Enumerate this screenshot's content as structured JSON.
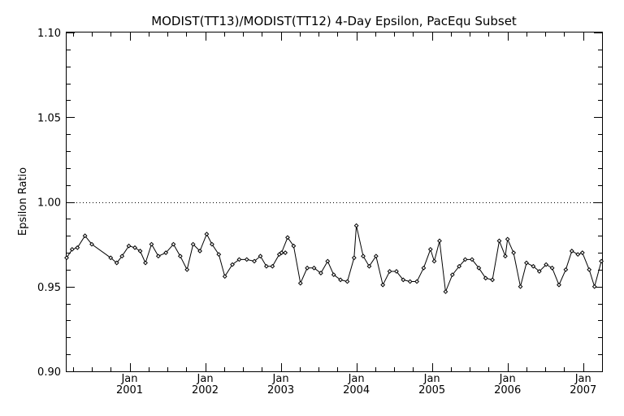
{
  "chart_data": {
    "type": "line",
    "title": "MODIST(TT13)/MODIST(TT12) 4-Day Epsilon, PacEqu Subset",
    "xlabel": "",
    "ylabel": "Epsilon Ratio",
    "xlim": [
      2000.167,
      2007.25
    ],
    "ylim": [
      0.9,
      1.1
    ],
    "yticks": [
      {
        "value": 0.9,
        "label": "0.90"
      },
      {
        "value": 0.95,
        "label": "0.95"
      },
      {
        "value": 1.0,
        "label": "1.00"
      },
      {
        "value": 1.05,
        "label": "1.05"
      },
      {
        "value": 1.1,
        "label": "1.10"
      }
    ],
    "y_minor_step": 0.01,
    "xticks": [
      {
        "value": 2001.0,
        "month": "Jan",
        "year": "2001"
      },
      {
        "value": 2002.0,
        "month": "Jan",
        "year": "2002"
      },
      {
        "value": 2003.0,
        "month": "Jan",
        "year": "2003"
      },
      {
        "value": 2004.0,
        "month": "Jan",
        "year": "2004"
      },
      {
        "value": 2005.0,
        "month": "Jan",
        "year": "2005"
      },
      {
        "value": 2006.0,
        "month": "Jan",
        "year": "2006"
      },
      {
        "value": 2007.0,
        "month": "Jan",
        "year": "2007"
      }
    ],
    "x_minor_step": 0.25,
    "reference_line": {
      "y": 1.0,
      "style": "dotted"
    },
    "grid": false,
    "series": [
      {
        "values": [
          [
            2000.167,
            0.967
          ],
          [
            2000.24,
            0.972
          ],
          [
            2000.31,
            0.973
          ],
          [
            2000.41,
            0.98
          ],
          [
            2000.5,
            0.975
          ],
          [
            2000.75,
            0.967
          ],
          [
            2000.83,
            0.964
          ],
          [
            2000.9,
            0.968
          ],
          [
            2000.99,
            0.974
          ],
          [
            2001.07,
            0.973
          ],
          [
            2001.14,
            0.971
          ],
          [
            2001.21,
            0.964
          ],
          [
            2001.29,
            0.975
          ],
          [
            2001.38,
            0.968
          ],
          [
            2001.48,
            0.97
          ],
          [
            2001.58,
            0.975
          ],
          [
            2001.67,
            0.968
          ],
          [
            2001.76,
            0.96
          ],
          [
            2001.84,
            0.975
          ],
          [
            2001.93,
            0.971
          ],
          [
            2002.02,
            0.981
          ],
          [
            2002.09,
            0.975
          ],
          [
            2002.18,
            0.969
          ],
          [
            2002.26,
            0.956
          ],
          [
            2002.36,
            0.963
          ],
          [
            2002.45,
            0.966
          ],
          [
            2002.55,
            0.966
          ],
          [
            2002.65,
            0.965
          ],
          [
            2002.73,
            0.968
          ],
          [
            2002.81,
            0.962
          ],
          [
            2002.89,
            0.962
          ],
          [
            2002.98,
            0.969
          ],
          [
            2003.06,
            0.97
          ],
          [
            2003.01,
            0.97
          ],
          [
            2003.09,
            0.979
          ],
          [
            2003.17,
            0.974
          ],
          [
            2003.26,
            0.952
          ],
          [
            2003.35,
            0.961
          ],
          [
            2003.44,
            0.961
          ],
          [
            2003.53,
            0.958
          ],
          [
            2003.62,
            0.965
          ],
          [
            2003.7,
            0.957
          ],
          [
            2003.79,
            0.954
          ],
          [
            2003.88,
            0.953
          ],
          [
            2003.97,
            0.967
          ],
          [
            2004.0,
            0.986
          ],
          [
            2004.09,
            0.968
          ],
          [
            2004.17,
            0.962
          ],
          [
            2004.26,
            0.968
          ],
          [
            2004.35,
            0.951
          ],
          [
            2004.44,
            0.959
          ],
          [
            2004.53,
            0.959
          ],
          [
            2004.62,
            0.954
          ],
          [
            2004.71,
            0.953
          ],
          [
            2004.8,
            0.953
          ],
          [
            2004.89,
            0.961
          ],
          [
            2004.98,
            0.972
          ],
          [
            2005.03,
            0.965
          ],
          [
            2005.1,
            0.977
          ],
          [
            2005.18,
            0.947
          ],
          [
            2005.27,
            0.957
          ],
          [
            2005.36,
            0.962
          ],
          [
            2005.44,
            0.966
          ],
          [
            2005.53,
            0.966
          ],
          [
            2005.62,
            0.961
          ],
          [
            2005.71,
            0.955
          ],
          [
            2005.8,
            0.954
          ],
          [
            2005.89,
            0.977
          ],
          [
            2005.97,
            0.968
          ],
          [
            2006.0,
            0.978
          ],
          [
            2006.08,
            0.97
          ],
          [
            2006.17,
            0.95
          ],
          [
            2006.25,
            0.964
          ],
          [
            2006.34,
            0.962
          ],
          [
            2006.42,
            0.959
          ],
          [
            2006.51,
            0.963
          ],
          [
            2006.59,
            0.961
          ],
          [
            2006.68,
            0.951
          ],
          [
            2006.77,
            0.96
          ],
          [
            2006.85,
            0.971
          ],
          [
            2006.93,
            0.969
          ],
          [
            2006.99,
            0.97
          ],
          [
            2007.08,
            0.96
          ],
          [
            2007.15,
            0.95
          ],
          [
            2007.24,
            0.965
          ]
        ]
      }
    ]
  }
}
